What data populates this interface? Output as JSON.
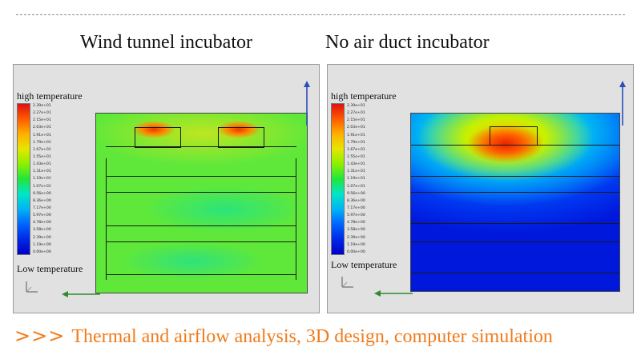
{
  "titles": {
    "left": "Wind tunnel incubator",
    "right": "No air duct incubator"
  },
  "legend": {
    "high_label": "high temperature",
    "low_label": "Low temperature",
    "ticks": [
      "2.39e+01",
      "2.27e+01",
      "2.15e+01",
      "2.03e+01",
      "1.91e+01",
      "1.79e+01",
      "1.67e+01",
      "1.55e+01",
      "1.43e+01",
      "1.31e+01",
      "1.19e+01",
      "1.07e+01",
      "9.56e+00",
      "8.36e+00",
      "7.17e+00",
      "5.97e+00",
      "4.78e+00",
      "3.58e+00",
      "2.39e+00",
      "1.19e+00",
      "0.00e+00"
    ]
  },
  "colors": {
    "footer_accent": "#f07b1c",
    "axis_blue": "#2b4fb8",
    "axis_green": "#2e8b2e"
  },
  "footer": {
    "chevrons": ">>>",
    "text": "Thermal and airflow analysis, 3D design, computer simulation"
  }
}
